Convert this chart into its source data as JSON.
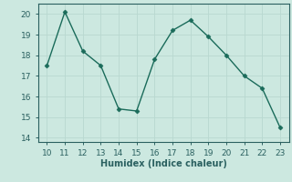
{
  "x": [
    10,
    11,
    12,
    13,
    14,
    15,
    16,
    17,
    18,
    19,
    20,
    21,
    22,
    23
  ],
  "y": [
    17.5,
    20.1,
    18.2,
    17.5,
    15.4,
    15.3,
    17.8,
    19.2,
    19.7,
    18.9,
    18.0,
    17.0,
    16.4,
    14.5
  ],
  "xlim": [
    9.5,
    23.5
  ],
  "ylim": [
    13.8,
    20.5
  ],
  "yticks": [
    14,
    15,
    16,
    17,
    18,
    19,
    20
  ],
  "xticks": [
    10,
    11,
    12,
    13,
    14,
    15,
    16,
    17,
    18,
    19,
    20,
    21,
    22,
    23
  ],
  "xlabel": "Humidex (Indice chaleur)",
  "line_color": "#1a6b5a",
  "marker": "D",
  "marker_size": 2.5,
  "bg_color": "#cce8e0",
  "grid_color": "#b8d8d0",
  "spine_color": "#2a6060"
}
